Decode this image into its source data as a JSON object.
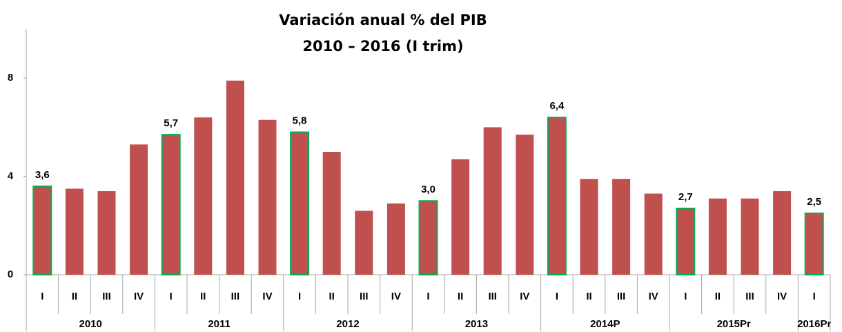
{
  "chart_data": {
    "type": "bar",
    "title": [
      "Variación anual % del PIB",
      "2010 – 2016 (I trim)"
    ],
    "groups": [
      {
        "name": "2010",
        "categories": [
          "I",
          "II",
          "III",
          "IV"
        ]
      },
      {
        "name": "2011",
        "categories": [
          "I",
          "II",
          "III",
          "IV"
        ]
      },
      {
        "name": "2012",
        "categories": [
          "I",
          "II",
          "III",
          "IV"
        ]
      },
      {
        "name": "2013",
        "categories": [
          "I",
          "II",
          "III",
          "IV"
        ]
      },
      {
        "name": "2014P",
        "categories": [
          "I",
          "II",
          "III",
          "IV"
        ]
      },
      {
        "name": "2015Pr",
        "categories": [
          "I",
          "II",
          "III",
          "IV"
        ]
      },
      {
        "name": "2016Pr",
        "categories": [
          "I"
        ]
      }
    ],
    "values": [
      3.6,
      3.5,
      3.4,
      5.3,
      5.7,
      6.4,
      7.9,
      6.3,
      5.8,
      5.0,
      2.6,
      2.9,
      3.0,
      4.7,
      6.0,
      5.7,
      6.4,
      3.9,
      3.9,
      3.3,
      2.7,
      3.1,
      3.1,
      3.4,
      2.5
    ],
    "value_labels": [
      "3,6",
      null,
      null,
      null,
      "5,7",
      null,
      null,
      null,
      "5,8",
      null,
      null,
      null,
      "3,0",
      null,
      null,
      null,
      "6,4",
      null,
      null,
      null,
      "2,7",
      null,
      null,
      null,
      "2,5"
    ],
    "color": "#c0504d",
    "highlight_color": "#00b050",
    "ylim": [
      0,
      10
    ],
    "yticks": [
      0,
      4,
      8
    ],
    "grid": false
  }
}
